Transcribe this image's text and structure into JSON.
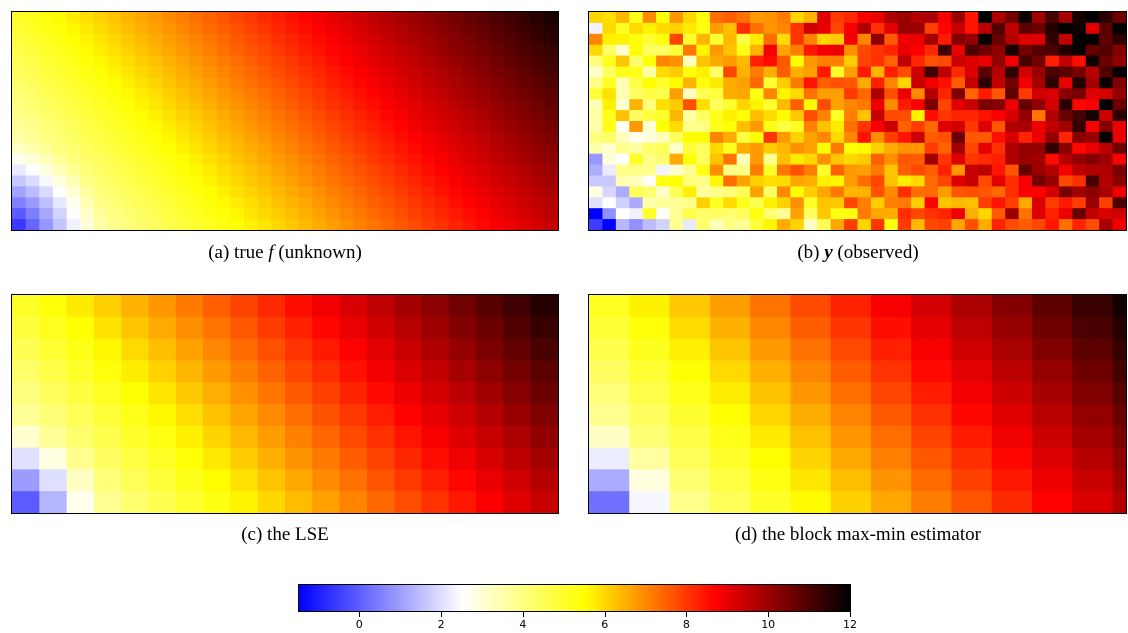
{
  "chart_data": [
    {
      "type": "heatmap",
      "id": "a",
      "caption_prefix": "(a)  true ",
      "caption_math": "f",
      "caption_suffix": " (unknown)",
      "grid": {
        "rows": 20,
        "cols": 40
      },
      "model": "smooth",
      "value_range": [
        -1.5,
        12
      ]
    },
    {
      "type": "heatmap",
      "id": "b",
      "caption_prefix": "(b)  ",
      "caption_math": "y",
      "caption_suffix": " (observed)",
      "grid": {
        "rows": 20,
        "cols": 40
      },
      "model": "noisy",
      "value_range": [
        -1.5,
        12
      ]
    },
    {
      "type": "heatmap",
      "id": "c",
      "caption_prefix": "(c)  the LSE",
      "caption_math": "",
      "caption_suffix": "",
      "grid": {
        "rows": 20,
        "cols": 40
      },
      "model": "blocky-fine",
      "value_range": [
        -1.5,
        12
      ]
    },
    {
      "type": "heatmap",
      "id": "d",
      "caption_prefix": "(d)  the block max-min estimator",
      "caption_math": "",
      "caption_suffix": "",
      "grid": {
        "rows": 20,
        "cols": 40
      },
      "model": "blocky-coarse",
      "value_range": [
        -1.5,
        12
      ]
    }
  ],
  "colorbar": {
    "min": -1.5,
    "max": 12,
    "ticks": [
      0,
      2,
      4,
      6,
      8,
      10,
      12
    ],
    "tick_labels": [
      "0",
      "2",
      "4",
      "6",
      "8",
      "10",
      "12"
    ],
    "colors": [
      "#0000ff",
      "#ffffff",
      "#ffff00",
      "#ff0000",
      "#000000"
    ],
    "color_stops": [
      -1.5,
      2.5,
      5.5,
      8.7,
      12
    ]
  }
}
